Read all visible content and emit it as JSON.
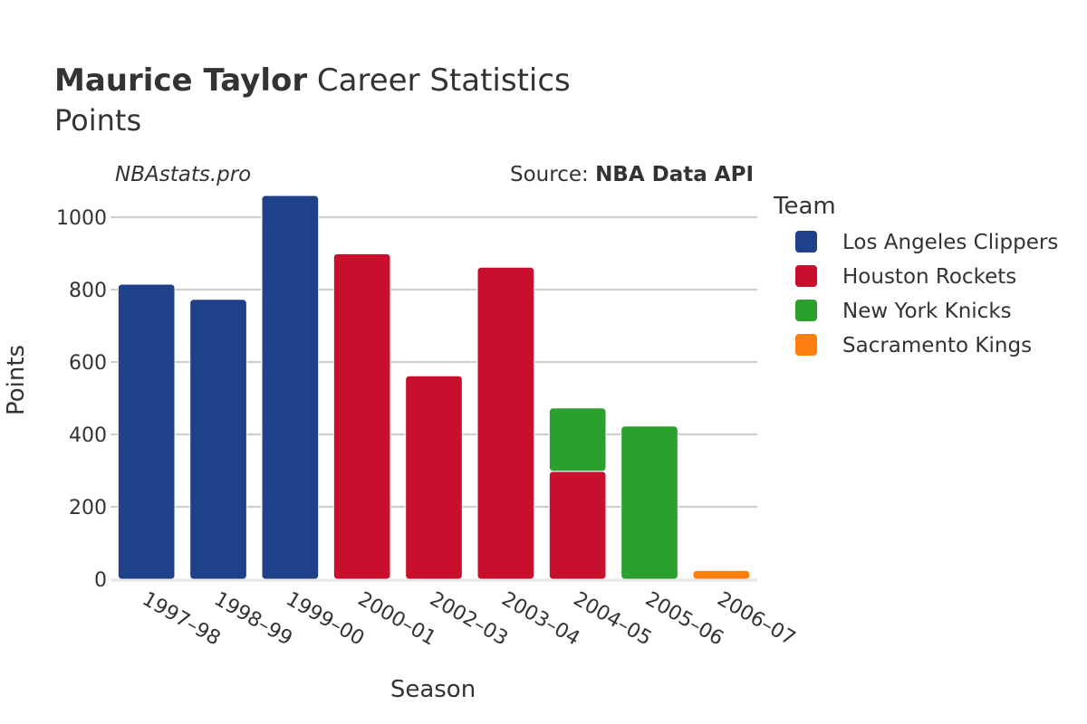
{
  "header": {
    "title_bold": "Maurice Taylor",
    "title_rest": " Career Statistics",
    "subtitle": "Points",
    "watermark": "NBAstats.pro",
    "source_prefix": "Source: ",
    "source_bold": "NBA Data API"
  },
  "legend": {
    "title": "Team"
  },
  "chart_data": {
    "type": "bar",
    "stacked": true,
    "categories": [
      "1997–98",
      "1998–99",
      "1999–00",
      "2000–01",
      "2002–03",
      "2003–04",
      "2004–05",
      "2005–06",
      "2006–07"
    ],
    "series": [
      {
        "name": "Los Angeles Clippers",
        "color": "#1f4189",
        "values": [
          815,
          773,
          1060,
          0,
          0,
          0,
          0,
          0,
          0
        ]
      },
      {
        "name": "Houston Rockets",
        "color": "#c8102e",
        "values": [
          0,
          0,
          0,
          899,
          562,
          862,
          298,
          0,
          0
        ]
      },
      {
        "name": "New York Knicks",
        "color": "#2ca02c",
        "values": [
          0,
          0,
          0,
          0,
          0,
          0,
          175,
          423,
          0
        ]
      },
      {
        "name": "Sacramento Kings",
        "color": "#ff7f0e",
        "values": [
          0,
          0,
          0,
          0,
          0,
          0,
          0,
          0,
          24
        ]
      }
    ],
    "xlabel": "Season",
    "ylabel": "Points",
    "ylim": [
      0,
      1100
    ],
    "yticks": [
      0,
      200,
      400,
      600,
      800,
      1000
    ],
    "grid": true,
    "legend_position": "right"
  }
}
